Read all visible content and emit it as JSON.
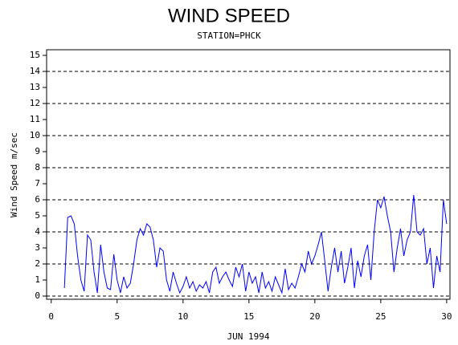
{
  "chart_data": {
    "type": "line",
    "title": "WIND SPEED",
    "subtitle": "STATION=PHCK",
    "x_label": "JUN 1994",
    "y_label": "Wind Speed m/sec",
    "color": "#0000ff",
    "xlim": [
      -0.35,
      30.25
    ],
    "ylim": [
      -0.2,
      15.35
    ],
    "xticks": [
      0,
      5,
      10,
      15,
      20,
      25,
      30
    ],
    "yticks": [
      0,
      1,
      2,
      3,
      4,
      5,
      6,
      7,
      8,
      9,
      10,
      11,
      12,
      13,
      14,
      15
    ],
    "reference_lines": [
      0,
      2,
      4,
      6,
      8,
      10,
      12,
      14
    ],
    "x": [
      1,
      1.25,
      1.5,
      1.75,
      2,
      2.25,
      2.5,
      2.75,
      3,
      3.25,
      3.5,
      3.75,
      4,
      4.25,
      4.5,
      4.75,
      5,
      5.25,
      5.5,
      5.75,
      6,
      6.25,
      6.5,
      6.75,
      7,
      7.25,
      7.5,
      7.75,
      8,
      8.25,
      8.5,
      8.75,
      9,
      9.25,
      9.5,
      9.75,
      10,
      10.25,
      10.5,
      10.75,
      11,
      11.25,
      11.5,
      11.75,
      12,
      12.25,
      12.5,
      12.75,
      13,
      13.25,
      13.5,
      13.75,
      14,
      14.25,
      14.5,
      14.75,
      15,
      15.25,
      15.5,
      15.75,
      16,
      16.25,
      16.5,
      16.75,
      17,
      17.25,
      17.5,
      17.75,
      18,
      18.25,
      18.5,
      18.75,
      19,
      19.25,
      19.5,
      19.75,
      20,
      20.25,
      20.5,
      20.75,
      21,
      21.25,
      21.5,
      21.75,
      22,
      22.25,
      22.5,
      22.75,
      23,
      23.25,
      23.5,
      23.75,
      24,
      24.25,
      24.5,
      24.75,
      25,
      25.25,
      25.5,
      25.75,
      26,
      26.25,
      26.5,
      26.75,
      27,
      27.25,
      27.5,
      27.75,
      28,
      28.25,
      28.5,
      28.75,
      29,
      29.25,
      29.5,
      29.75,
      30
    ],
    "values": [
      0.5,
      4.9,
      5,
      4.5,
      2.5,
      1,
      0.3,
      3.8,
      3.5,
      1.5,
      0.2,
      3.2,
      1.5,
      0.5,
      0.4,
      2.6,
      1,
      0.2,
      1.2,
      0.5,
      0.8,
      2,
      3.5,
      4.2,
      3.8,
      4.5,
      4.3,
      3.5,
      1.8,
      3,
      2.8,
      1,
      0.3,
      1.5,
      0.8,
      0.2,
      0.6,
      1.2,
      0.5,
      0.9,
      0.3,
      0.7,
      0.5,
      0.9,
      0.2,
      1.5,
      1.8,
      0.8,
      1.2,
      1.5,
      1,
      0.6,
      1.8,
      1.2,
      2,
      0.3,
      1.5,
      0.8,
      1.2,
      0.2,
      1.5,
      0.5,
      0.9,
      0.3,
      1.2,
      0.7,
      0.2,
      1.7,
      0.4,
      0.8,
      0.5,
      1.2,
      2,
      1.5,
      2.8,
      2,
      2.5,
      3.2,
      4,
      2.2,
      0.3,
      1.8,
      3,
      1.5,
      2.8,
      0.8,
      1.8,
      3,
      0.5,
      2.2,
      1.2,
      2.5,
      3.2,
      1,
      4,
      6,
      5.5,
      6.2,
      5,
      4,
      1.5,
      3,
      4.2,
      2.5,
      3.5,
      4,
      6.3,
      4,
      3.8,
      4.2,
      2,
      3,
      0.5,
      2.5,
      1.5,
      6,
      4.5
    ]
  }
}
